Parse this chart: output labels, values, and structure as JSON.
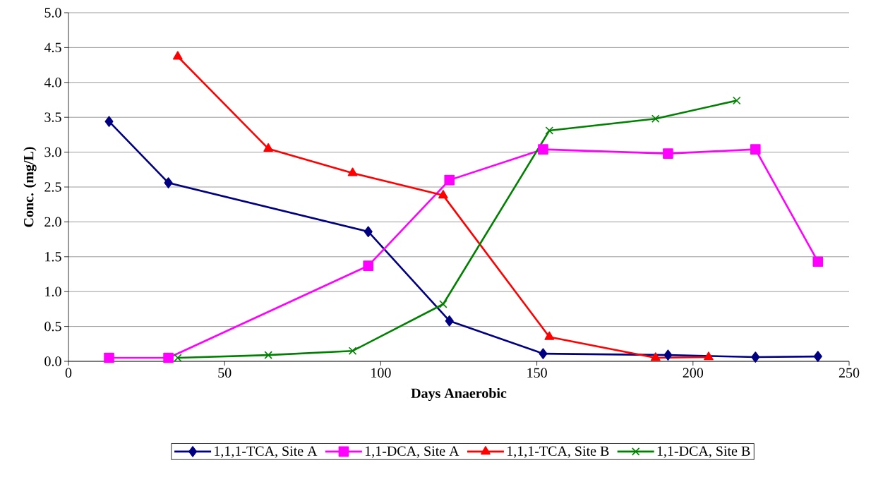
{
  "chart_data": {
    "type": "line",
    "xlabel": "Days Anaerobic",
    "ylabel": "Conc. (mg/L)",
    "xlim": [
      0,
      250
    ],
    "xticks": [
      0,
      50,
      100,
      150,
      200,
      250
    ],
    "ylim": [
      0,
      5
    ],
    "yticks": [
      {
        "value": 0,
        "label": "0.0"
      },
      0.5,
      {
        "value": 1,
        "label": "1.0"
      },
      1.5,
      {
        "value": 2,
        "label": "2.0"
      },
      2.5,
      {
        "value": 3,
        "label": "3.0"
      },
      3.5,
      {
        "value": 4,
        "label": "4.0"
      },
      4.5,
      {
        "value": 5,
        "label": "5.0"
      }
    ],
    "grid": "y",
    "legend": "bottom",
    "line_style": "solid",
    "series": [
      {
        "name": "1,1,1-TCA, Site A",
        "color": "#000080",
        "marker": "diamond",
        "x": [
          13,
          32,
          96,
          122,
          152,
          192,
          220,
          240
        ],
        "values": [
          3.44,
          2.56,
          1.86,
          0.58,
          0.11,
          0.09,
          0.06,
          0.07
        ]
      },
      {
        "name": "1,1-DCA, Site A",
        "color": "#ff00ff",
        "marker": "square",
        "x": [
          13,
          32,
          96,
          122,
          152,
          192,
          220,
          240
        ],
        "values": [
          0.05,
          0.05,
          1.37,
          2.6,
          3.04,
          2.98,
          3.04,
          1.43
        ]
      },
      {
        "name": "1,1,1-TCA, Site B",
        "color": "#ff0000",
        "marker": "triangle",
        "x": [
          35,
          64,
          91,
          120,
          154,
          188,
          205
        ],
        "values": [
          4.37,
          3.05,
          2.7,
          2.38,
          0.35,
          0.05,
          0.06
        ]
      },
      {
        "name": "1,1-DCA, Site B",
        "color": "#008000",
        "marker": "cross",
        "x": [
          35,
          64,
          91,
          120,
          154,
          188,
          214
        ],
        "values": [
          0.05,
          0.09,
          0.15,
          0.82,
          3.31,
          3.48,
          3.74
        ]
      }
    ]
  }
}
